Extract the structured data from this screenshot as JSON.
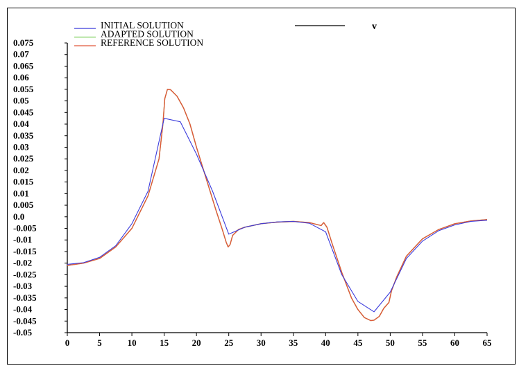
{
  "chart_data": {
    "type": "line",
    "title": "",
    "variable_label": "v",
    "xlabel": "",
    "ylabel": "",
    "xlim": [
      0,
      65
    ],
    "ylim": [
      -0.05,
      0.075
    ],
    "x_ticks": [
      0,
      5,
      10,
      15,
      20,
      25,
      30,
      35,
      40,
      45,
      50,
      55,
      60,
      65
    ],
    "x_tick_labels": [
      "0",
      "5",
      "10",
      "15",
      "20",
      "25",
      "30",
      "35",
      "40",
      "45",
      "50",
      "55",
      "60",
      "65"
    ],
    "y_ticks": [
      0.075,
      0.07,
      0.065,
      0.06,
      0.055,
      0.05,
      0.045,
      0.04,
      0.035,
      0.03,
      0.025,
      0.02,
      0.015,
      0.01,
      0.005,
      0.0,
      -0.005,
      -0.01,
      -0.015,
      -0.02,
      -0.025,
      -0.03,
      -0.035,
      -0.04,
      -0.045,
      -0.05
    ],
    "y_tick_labels": [
      "0.075",
      "0.07",
      "0.065",
      "0.06",
      "0.055",
      "0.05",
      "0.045",
      "0.04",
      "0.035",
      "0.03",
      "0.025",
      "0.02",
      "0.015",
      "0.01",
      "0.005",
      "0.0",
      "-0.005",
      "-0.01",
      "-0.015",
      "-0.02",
      "-0.025",
      "-0.03",
      "-0.035",
      "-0.04",
      "-0.045",
      "-0.05"
    ],
    "grid": false,
    "legend_placement": "top-left",
    "series": [
      {
        "name": "INITIAL SOLUTION",
        "color": "#3b3bdc",
        "points": [
          [
            0,
            -0.0205
          ],
          [
            2.5,
            -0.0198
          ],
          [
            5,
            -0.0175
          ],
          [
            7.5,
            -0.0125
          ],
          [
            10,
            -0.003
          ],
          [
            12.5,
            0.011
          ],
          [
            15,
            0.0425
          ],
          [
            17.5,
            0.041
          ],
          [
            20,
            0.027
          ],
          [
            22.5,
            0.011
          ],
          [
            25,
            -0.0075
          ],
          [
            27.5,
            -0.0045
          ],
          [
            30,
            -0.003
          ],
          [
            32.5,
            -0.0022
          ],
          [
            35,
            -0.002
          ],
          [
            37.5,
            -0.0028
          ],
          [
            40,
            -0.0065
          ],
          [
            42.5,
            -0.025
          ],
          [
            45,
            -0.0365
          ],
          [
            47.5,
            -0.041
          ],
          [
            50,
            -0.0325
          ],
          [
            52.5,
            -0.018
          ],
          [
            55,
            -0.0105
          ],
          [
            57.5,
            -0.006
          ],
          [
            60,
            -0.0035
          ],
          [
            62.5,
            -0.002
          ],
          [
            65,
            -0.0015
          ]
        ]
      },
      {
        "name": "ADAPTED SOLUTION",
        "color": "#7ccf5a",
        "points": [
          [
            0,
            -0.021
          ],
          [
            2.5,
            -0.02
          ],
          [
            5,
            -0.018
          ],
          [
            7.5,
            -0.013
          ],
          [
            10,
            -0.005
          ],
          [
            12.5,
            0.009
          ],
          [
            14.2,
            0.025
          ],
          [
            14.8,
            0.04
          ],
          [
            15.1,
            0.051
          ],
          [
            15.5,
            0.055
          ],
          [
            16,
            0.0548
          ],
          [
            17,
            0.052
          ],
          [
            18,
            0.047
          ],
          [
            19,
            0.04
          ],
          [
            20,
            0.03
          ],
          [
            21,
            0.021
          ],
          [
            22,
            0.012
          ],
          [
            23,
            0.003
          ],
          [
            24,
            -0.0055
          ],
          [
            24.6,
            -0.011
          ],
          [
            24.9,
            -0.013
          ],
          [
            25.2,
            -0.012
          ],
          [
            25.6,
            -0.008
          ],
          [
            26.5,
            -0.0055
          ],
          [
            27.5,
            -0.0045
          ],
          [
            30,
            -0.003
          ],
          [
            32.5,
            -0.0023
          ],
          [
            35,
            -0.002
          ],
          [
            37.5,
            -0.0025
          ],
          [
            39.3,
            -0.0038
          ],
          [
            39.7,
            -0.0025
          ],
          [
            40.2,
            -0.0045
          ],
          [
            41,
            -0.0115
          ],
          [
            42.5,
            -0.024
          ],
          [
            44,
            -0.035
          ],
          [
            45,
            -0.04
          ],
          [
            46,
            -0.0435
          ],
          [
            47,
            -0.0448
          ],
          [
            47.5,
            -0.0446
          ],
          [
            48.3,
            -0.043
          ],
          [
            49,
            -0.0395
          ],
          [
            49.8,
            -0.037
          ],
          [
            50.2,
            -0.032
          ],
          [
            51,
            -0.026
          ],
          [
            52.5,
            -0.017
          ],
          [
            55,
            -0.0095
          ],
          [
            57.5,
            -0.0055
          ],
          [
            60,
            -0.003
          ],
          [
            62.5,
            -0.0018
          ],
          [
            65,
            -0.0012
          ]
        ]
      },
      {
        "name": "REFERENCE SOLUTION",
        "color": "#e0573a",
        "points": [
          [
            0,
            -0.021
          ],
          [
            2.5,
            -0.02
          ],
          [
            5,
            -0.018
          ],
          [
            7.5,
            -0.013
          ],
          [
            10,
            -0.005
          ],
          [
            12.5,
            0.009
          ],
          [
            14.2,
            0.025
          ],
          [
            14.8,
            0.04
          ],
          [
            15.1,
            0.051
          ],
          [
            15.5,
            0.055
          ],
          [
            16,
            0.0548
          ],
          [
            17,
            0.052
          ],
          [
            18,
            0.047
          ],
          [
            19,
            0.04
          ],
          [
            20,
            0.03
          ],
          [
            21,
            0.021
          ],
          [
            22,
            0.012
          ],
          [
            23,
            0.003
          ],
          [
            24,
            -0.0055
          ],
          [
            24.6,
            -0.011
          ],
          [
            24.9,
            -0.013
          ],
          [
            25.2,
            -0.012
          ],
          [
            25.6,
            -0.008
          ],
          [
            26.5,
            -0.0055
          ],
          [
            27.5,
            -0.0045
          ],
          [
            30,
            -0.003
          ],
          [
            32.5,
            -0.0023
          ],
          [
            35,
            -0.002
          ],
          [
            37.5,
            -0.0025
          ],
          [
            39.3,
            -0.0038
          ],
          [
            39.7,
            -0.0025
          ],
          [
            40.2,
            -0.0045
          ],
          [
            41,
            -0.0115
          ],
          [
            42.5,
            -0.024
          ],
          [
            44,
            -0.035
          ],
          [
            45,
            -0.04
          ],
          [
            46,
            -0.0435
          ],
          [
            47,
            -0.0448
          ],
          [
            47.5,
            -0.0446
          ],
          [
            48.3,
            -0.043
          ],
          [
            49,
            -0.0395
          ],
          [
            49.8,
            -0.037
          ],
          [
            50.2,
            -0.032
          ],
          [
            51,
            -0.026
          ],
          [
            52.5,
            -0.017
          ],
          [
            55,
            -0.0095
          ],
          [
            57.5,
            -0.0055
          ],
          [
            60,
            -0.003
          ],
          [
            62.5,
            -0.0018
          ],
          [
            65,
            -0.0012
          ]
        ]
      }
    ]
  }
}
